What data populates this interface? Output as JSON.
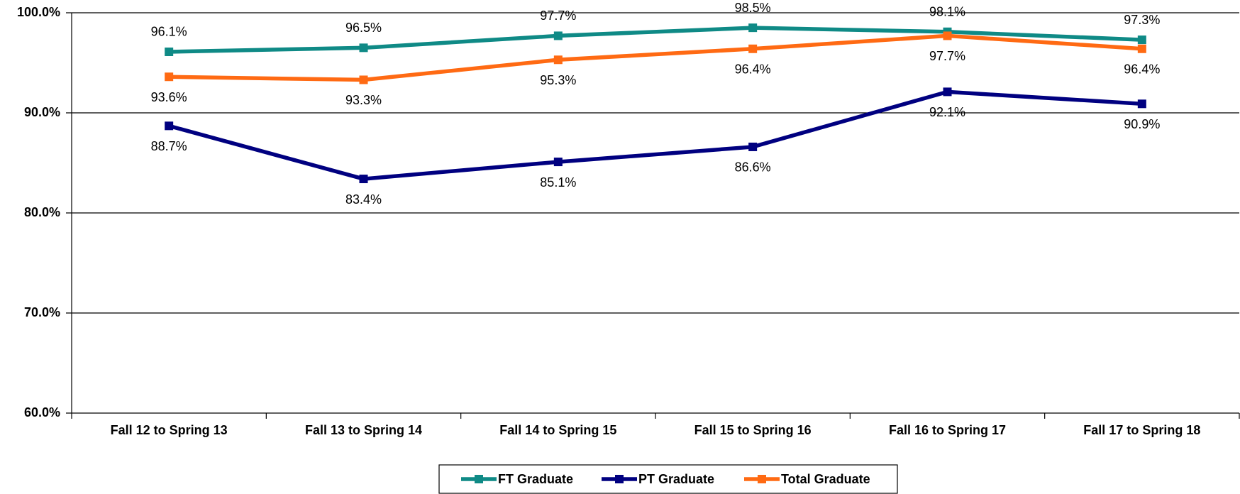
{
  "chart_data": {
    "type": "line",
    "categories": [
      "Fall 12 to Spring 13",
      "Fall 13 to Spring 14",
      "Fall 14 to Spring 15",
      "Fall 15 to Spring 16",
      "Fall 16 to Spring 17",
      "Fall 17 to Spring 18"
    ],
    "series": [
      {
        "name": "FT Graduate",
        "color": "#0f8a86",
        "label_position": "above",
        "values": [
          96.1,
          96.5,
          97.7,
          98.5,
          98.1,
          97.3
        ],
        "value_labels": [
          "96.1%",
          "96.5%",
          "97.7%",
          "98.5%",
          "98.1%",
          "97.3%"
        ]
      },
      {
        "name": "PT Graduate",
        "color": "#000080",
        "label_position": "below",
        "values": [
          88.7,
          83.4,
          85.1,
          86.6,
          92.1,
          90.9
        ],
        "value_labels": [
          "88.7%",
          "83.4%",
          "85.1%",
          "86.6%",
          "92.1%",
          "90.9%"
        ]
      },
      {
        "name": "Total Graduate",
        "color": "#ff6a13",
        "label_position": "below",
        "values": [
          93.6,
          93.3,
          95.3,
          96.4,
          97.7,
          96.4
        ],
        "value_labels": [
          "93.6%",
          "93.3%",
          "95.3%",
          "96.4%",
          "97.7%",
          "96.4%"
        ]
      }
    ],
    "ylim": [
      60,
      100
    ],
    "yticks": [
      {
        "value": 60,
        "label": "60.0%"
      },
      {
        "value": 70,
        "label": "70.0%"
      },
      {
        "value": 80,
        "label": "80.0%"
      },
      {
        "value": 90,
        "label": "90.0%"
      },
      {
        "value": 100,
        "label": "100.0%"
      }
    ],
    "grid": true,
    "legend": "bottom"
  }
}
